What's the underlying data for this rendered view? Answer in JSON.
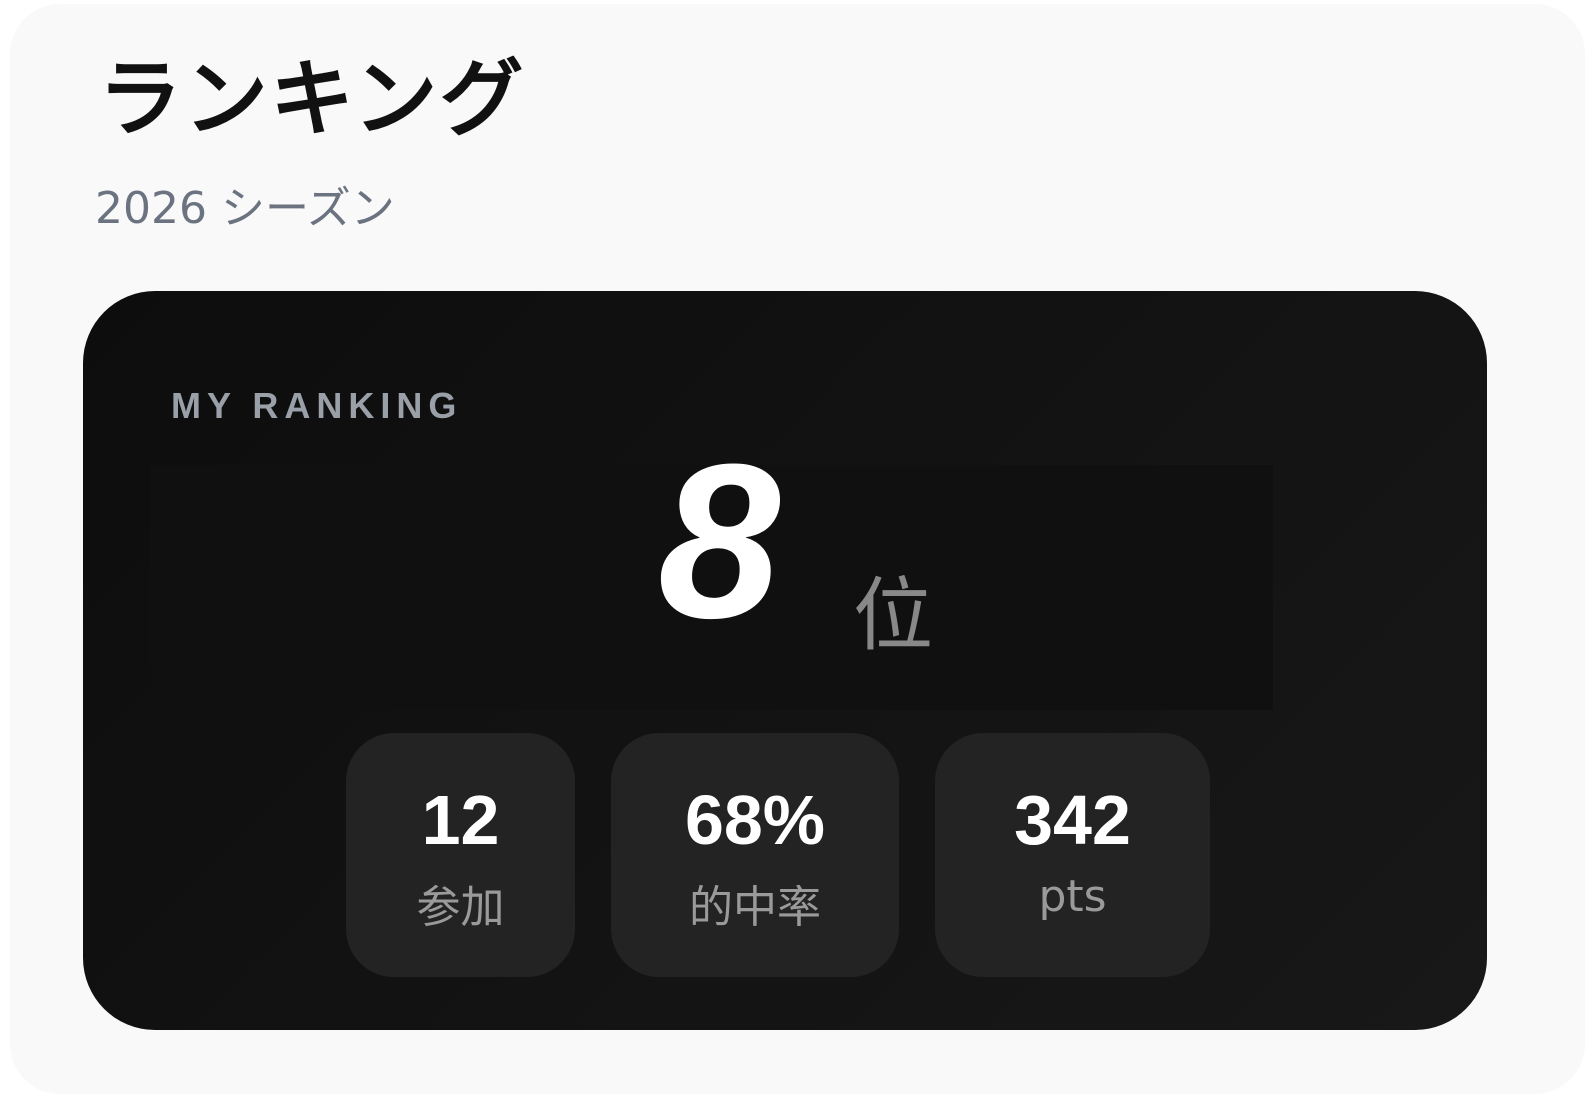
{
  "header": {
    "title": "ランキング",
    "subtitle": "2026 シーズン"
  },
  "my_ranking": {
    "label": "MY RANKING",
    "rank": "8",
    "rank_unit": "位",
    "stats": [
      {
        "value": "12",
        "label": "参加"
      },
      {
        "value": "68%",
        "label": "的中率"
      },
      {
        "value": "342",
        "label": "pts"
      }
    ]
  }
}
